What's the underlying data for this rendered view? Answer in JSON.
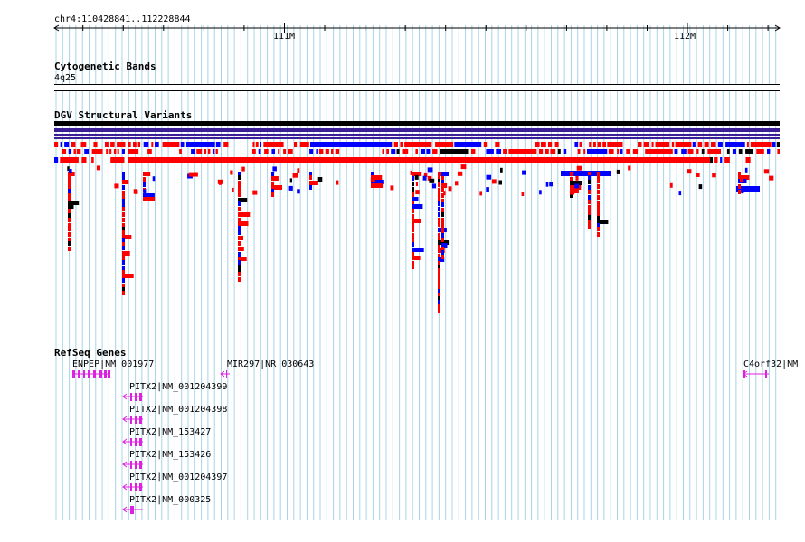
{
  "ruler": {
    "range_label": "chr4:110428841..112228844",
    "ticks": [
      {
        "label": "111M",
        "pos": 111000000
      },
      {
        "label": "112M",
        "pos": 112000000
      }
    ],
    "start": 110428841,
    "end": 112228844
  },
  "tracks": {
    "cytoband": {
      "title": "Cytogenetic Bands",
      "band": "4q25"
    },
    "dgv": {
      "title": "DGV Structural Variants"
    },
    "refseq": {
      "title": "RefSeq Genes",
      "genes": [
        {
          "label": "ENPEP|NM_001977",
          "color": "#e020e0"
        },
        {
          "label": "MIR297|NR_030643",
          "color": "#e020e0"
        },
        {
          "label": "C4orf32|NM_",
          "color": "#e020e0"
        },
        {
          "label": "PITX2|NM_001204399",
          "color": "#e020e0"
        },
        {
          "label": "PITX2|NM_001204398",
          "color": "#e020e0"
        },
        {
          "label": "PITX2|NM_153427",
          "color": "#e020e0"
        },
        {
          "label": "PITX2|NM_153426",
          "color": "#e020e0"
        },
        {
          "label": "PITX2|NM_001204397",
          "color": "#e020e0"
        },
        {
          "label": "PITX2|NM_000325",
          "color": "#e020e0"
        }
      ]
    }
  },
  "colors": {
    "grid": "#a8d4e8",
    "gain": "#ff0000",
    "loss": "#0000ff",
    "complex": "#000000",
    "summary_purple": "#3c1e96",
    "gene": "#e020e0"
  }
}
